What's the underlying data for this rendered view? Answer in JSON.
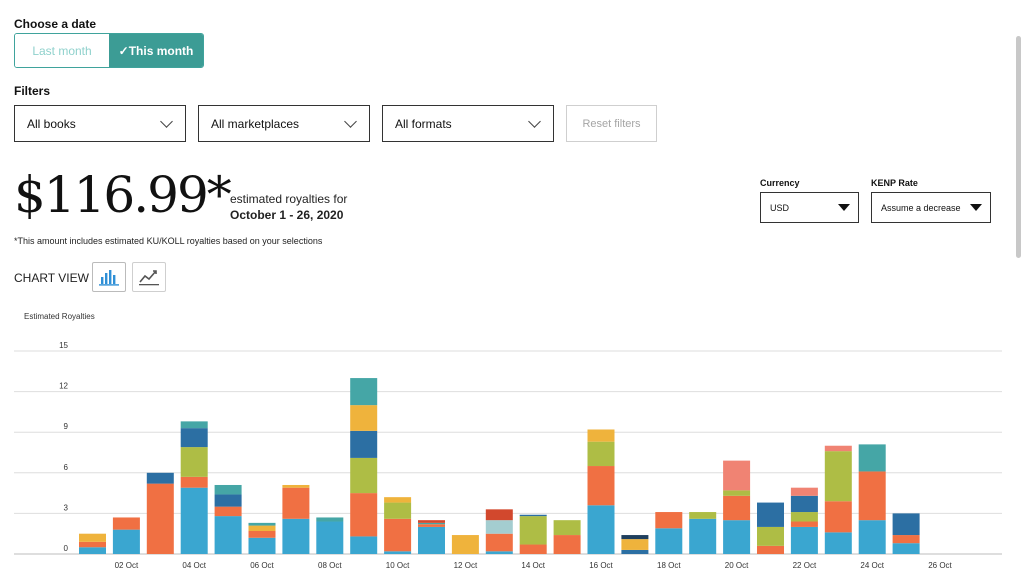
{
  "date_section": {
    "label": "Choose a date",
    "options": [
      {
        "label": "Last month",
        "active": false
      },
      {
        "label": "✓This month",
        "active": true
      }
    ]
  },
  "filters": {
    "label": "Filters",
    "books": "All books",
    "marketplaces": "All marketplaces",
    "formats": "All formats",
    "reset_label": "Reset filters"
  },
  "summary": {
    "amount": "$116.99*",
    "line1": "estimated royalties for",
    "line2": "October 1 - 26, 2020",
    "footnote": "*This amount includes estimated KU/KOLL royalties based on your selections"
  },
  "currency": {
    "label": "Currency",
    "value": "USD"
  },
  "kenp": {
    "label": "KENP Rate",
    "value": "Assume a decrease"
  },
  "chart_view": {
    "label": "CHART VIEW",
    "active": "bar"
  },
  "icons": {
    "bar_view": "bar-chart-icon",
    "line_view": "line-chart-icon",
    "dropdown": "chevron-down-icon",
    "select": "triangle-down-icon"
  },
  "colors": {
    "accent": "#3c9c95"
  },
  "chart_data": {
    "type": "bar",
    "stacked": true,
    "ylabel": "Estimated Royalties",
    "ylim": [
      0,
      15
    ],
    "yticks": [
      0,
      3,
      6,
      9,
      12,
      15
    ],
    "grid": true,
    "categories": [
      "01 Oct",
      "02 Oct",
      "03 Oct",
      "04 Oct",
      "05 Oct",
      "06 Oct",
      "07 Oct",
      "08 Oct",
      "09 Oct",
      "10 Oct",
      "11 Oct",
      "12 Oct",
      "13 Oct",
      "14 Oct",
      "15 Oct",
      "16 Oct",
      "17 Oct",
      "18 Oct",
      "19 Oct",
      "20 Oct",
      "21 Oct",
      "22 Oct",
      "23 Oct",
      "24 Oct",
      "25 Oct",
      "26 Oct"
    ],
    "x_tick_labels": [
      "",
      "02 Oct",
      "",
      "04 Oct",
      "",
      "06 Oct",
      "",
      "08 Oct",
      "",
      "10 Oct",
      "",
      "12 Oct",
      "",
      "14 Oct",
      "",
      "16 Oct",
      "",
      "18 Oct",
      "",
      "20 Oct",
      "",
      "22 Oct",
      "",
      "24 Oct",
      "",
      "26 Oct"
    ],
    "series": [
      {
        "color": "#3aa6d0",
        "values": [
          0.5,
          1.8,
          0,
          4.9,
          2.8,
          1.2,
          2.6,
          2.4,
          1.3,
          0.2,
          2.0,
          0,
          0.2,
          0,
          0,
          3.6,
          0,
          1.9,
          2.6,
          2.5,
          0,
          2.0,
          1.6,
          2.5,
          0.8,
          0
        ]
      },
      {
        "color": "#f07043",
        "values": [
          0.4,
          0.9,
          5.2,
          0.8,
          0.7,
          0.5,
          2.3,
          0,
          3.2,
          2.4,
          0.2,
          0,
          1.3,
          0.7,
          1.4,
          2.9,
          0,
          1.2,
          0,
          1.8,
          0.6,
          0.4,
          2.3,
          3.6,
          0.6,
          0
        ]
      },
      {
        "color": "#aebd45",
        "values": [
          0,
          0,
          0,
          2.2,
          0,
          0,
          0,
          0,
          2.6,
          1.2,
          0,
          0,
          0,
          2.1,
          1.1,
          1.8,
          0,
          0,
          0.5,
          0.4,
          1.4,
          0.7,
          3.7,
          0,
          0,
          0
        ]
      },
      {
        "color": "#2c6fa3",
        "values": [
          0,
          0,
          0.8,
          1.4,
          0.9,
          0,
          0,
          0,
          2.0,
          0,
          0,
          0,
          0,
          0.1,
          0,
          0,
          0.3,
          0,
          0,
          0,
          1.8,
          1.2,
          0,
          0,
          1.6,
          0
        ]
      },
      {
        "color": "#efb33c",
        "values": [
          0.6,
          0,
          0,
          0,
          0,
          0.4,
          0.2,
          0,
          1.9,
          0.4,
          0,
          1.4,
          0,
          0,
          0,
          0.9,
          0.8,
          0,
          0,
          0,
          0,
          0,
          0,
          0,
          0,
          0
        ]
      },
      {
        "color": "#45a6a6",
        "values": [
          0,
          0,
          0,
          0.5,
          0.7,
          0.2,
          0,
          0.3,
          2.0,
          0,
          0.1,
          0,
          0,
          0,
          0,
          0,
          0,
          0,
          0,
          0,
          0,
          0,
          0,
          2.0,
          0,
          0
        ]
      },
      {
        "color": "#f08373",
        "values": [
          0,
          0,
          0,
          0,
          0,
          0,
          0,
          0,
          0,
          0,
          0,
          0,
          0,
          0,
          0,
          0,
          0,
          0,
          0,
          2.2,
          0,
          0.6,
          0.4,
          0,
          0,
          0
        ]
      },
      {
        "color": "#a4cdd0",
        "values": [
          0,
          0,
          0,
          0,
          0,
          0,
          0,
          0,
          0,
          0,
          0,
          0,
          1.0,
          0,
          0,
          0,
          0,
          0,
          0,
          0,
          0,
          0,
          0,
          0,
          0,
          0
        ]
      },
      {
        "color": "#d2482d",
        "values": [
          0,
          0,
          0,
          0,
          0,
          0,
          0,
          0,
          0,
          0,
          0.2,
          0,
          0.8,
          0,
          0,
          0,
          0,
          0,
          0,
          0,
          0,
          0,
          0,
          0,
          0,
          0
        ]
      },
      {
        "color": "#1f3f5e",
        "values": [
          0,
          0,
          0,
          0,
          0,
          0,
          0,
          0,
          0,
          0,
          0,
          0,
          0,
          0,
          0,
          0,
          0.3,
          0,
          0,
          0,
          0,
          0,
          0,
          0,
          0,
          0
        ]
      }
    ]
  }
}
